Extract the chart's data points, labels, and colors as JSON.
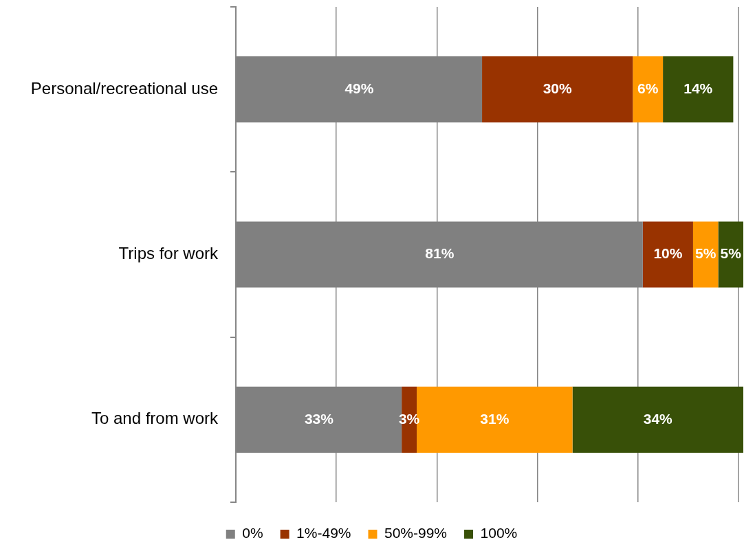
{
  "chart_data": {
    "type": "bar",
    "orientation": "horizontal",
    "stacked": true,
    "categories": [
      "Personal/recreational use",
      "Trips for work",
      "To and from work"
    ],
    "series": [
      {
        "name": "0%",
        "color": "#808080",
        "values": [
          49,
          81,
          33
        ],
        "value_labels": [
          "49%",
          "81%",
          "33%"
        ]
      },
      {
        "name": "1%-49%",
        "color": "#993300",
        "values": [
          30,
          10,
          3
        ],
        "value_labels": [
          "30%",
          "10%",
          "3%"
        ]
      },
      {
        "name": "50%-99%",
        "color": "#ff9900",
        "values": [
          6,
          5,
          31
        ],
        "value_labels": [
          "6%",
          "5%",
          "31%"
        ]
      },
      {
        "name": "100%",
        "color": "#385008",
        "values": [
          14,
          5,
          34
        ],
        "value_labels": [
          "14%",
          "5%",
          "34%"
        ]
      }
    ],
    "xlim": [
      0,
      101
    ],
    "xticks": [
      {
        "value": 0,
        "label": null
      },
      {
        "value": 20,
        "label": null
      },
      {
        "value": 40,
        "label": null
      },
      {
        "value": 60,
        "label": null
      },
      {
        "value": 80,
        "label": null
      },
      {
        "value": 100,
        "label": null
      }
    ],
    "grid": "x",
    "legend": "bottom",
    "tick_labels": "y"
  }
}
